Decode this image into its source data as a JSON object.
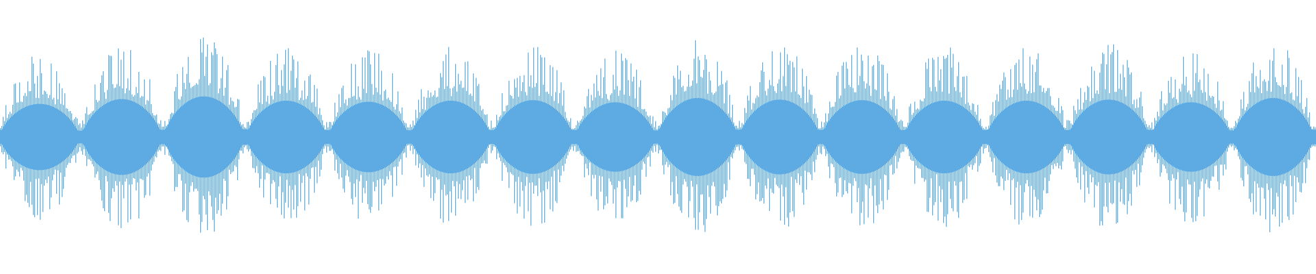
{
  "chart_data": {
    "type": "waveform",
    "title": "",
    "xlabel": "",
    "ylabel": "",
    "ylim": [
      -1,
      1
    ],
    "grid": false,
    "legend": "none",
    "color": "#5DABE2",
    "segment_count": 16,
    "segment_peaks": [
      0.62,
      0.71,
      0.76,
      0.68,
      0.66,
      0.68,
      0.69,
      0.65,
      0.73,
      0.7,
      0.69,
      0.68,
      0.68,
      0.7,
      0.65,
      0.73
    ]
  }
}
